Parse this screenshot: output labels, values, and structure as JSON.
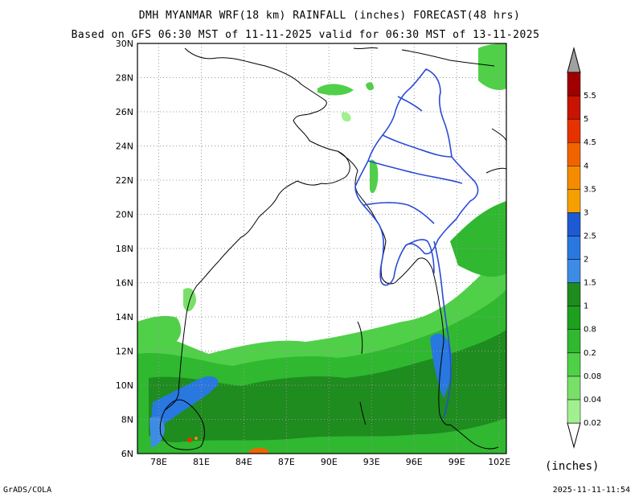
{
  "title": {
    "line1": "DMH MYANMAR WRF(18 km) RAINFALL (inches) FORECAST(48 hrs)",
    "line2": "Based on GFS 06:30 MST of 11-11-2025 valid for 06:30 MST of 13-11-2025"
  },
  "map": {
    "lat_labels": [
      "30N",
      "28N",
      "26N",
      "24N",
      "22N",
      "20N",
      "18N",
      "16N",
      "14N",
      "12N",
      "10N",
      "8N",
      "6N"
    ],
    "lon_labels": [
      "78E",
      "81E",
      "84E",
      "87E",
      "90E",
      "93E",
      "96E",
      "99E",
      "102E"
    ],
    "lat_range": [
      6,
      30
    ],
    "lon_range": [
      76.5,
      102.5
    ],
    "gridlines": true,
    "region": "Myanmar and Bay of Bengal"
  },
  "legend": {
    "units": "(inches)",
    "levels": [
      "0.02",
      "0.04",
      "0.08",
      "0.2",
      "0.8",
      "1",
      "1.5",
      "2",
      "2.5",
      "3",
      "3.5",
      "4",
      "4.5",
      "5",
      "5.5"
    ],
    "colors": [
      "#a0f090",
      "#78e068",
      "#50d048",
      "#30b830",
      "#1ea01e",
      "#1e8c1e",
      "#3c8ce6",
      "#2878e0",
      "#1e5ad2",
      "#f5a000",
      "#f58c00",
      "#f06400",
      "#e63200",
      "#c81400",
      "#a00000"
    ],
    "low_end_color": "#ffffff",
    "high_end_color": "#a0a0a0"
  },
  "footer": {
    "left": "GrADS/COLA",
    "right": "2025-11-11-11:54"
  }
}
